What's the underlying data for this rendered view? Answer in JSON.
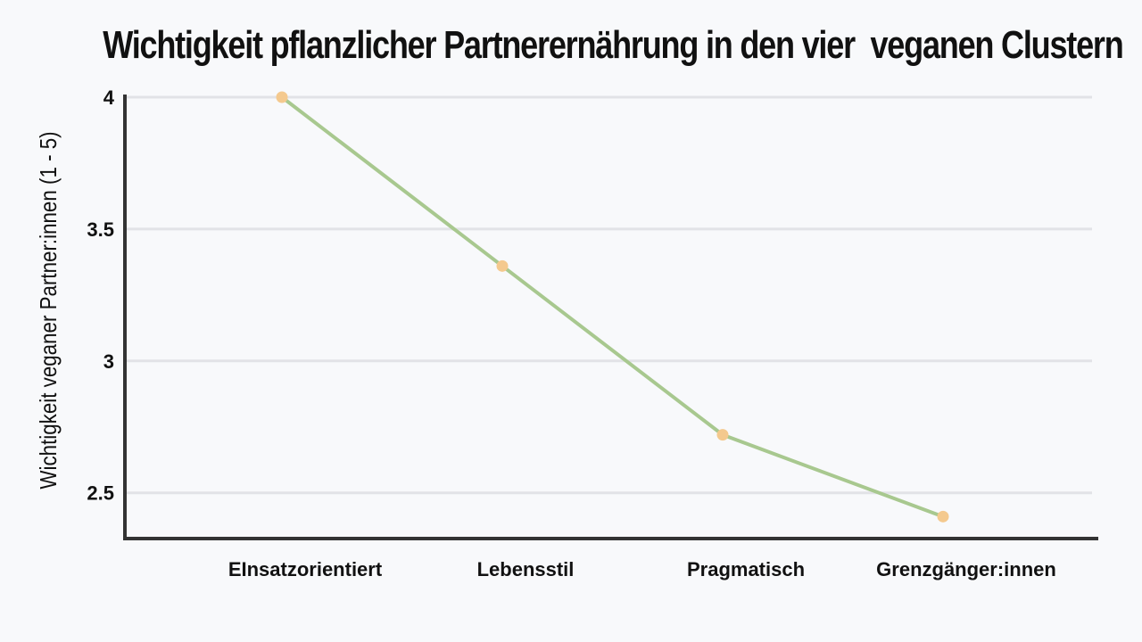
{
  "chart_data": {
    "type": "line",
    "title": "Wichtigkeit pflanzlicher Partnerernährung in den vier  veganen Clustern",
    "xlabel": "",
    "ylabel": "Wichtigkeit veganer Partner:innen (1 - 5)",
    "categories": [
      "EInsatzorientiert",
      "Lebensstil",
      "Pragmatisch",
      "Grenzgänger:innen"
    ],
    "series": [
      {
        "values": [
          4.0,
          3.36,
          2.72,
          2.41
        ]
      }
    ],
    "ylim": [
      2.33,
      4.0
    ],
    "yticks": [
      2.5,
      3,
      3.5,
      4
    ],
    "ytick_labels": [
      "2.5",
      "3",
      "3.5",
      "4"
    ],
    "grid": true,
    "legend": "none",
    "colors": {
      "line": "#a8c88f",
      "marker": "#f4c98e",
      "grid": "#e2e3e7",
      "axis": "#333333"
    }
  }
}
